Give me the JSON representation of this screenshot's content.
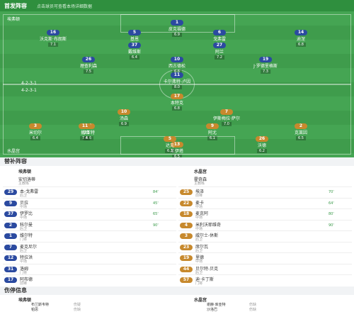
{
  "header": {
    "title": "首发阵容",
    "subtitle": "点击球员可查看本场详细数据"
  },
  "pitch": {
    "home": {
      "name": "埃弗顿",
      "formation": "4-2-3-1",
      "players": [
        {
          "number": "1",
          "name": "皮克福德",
          "rating": "6.9"
        },
        {
          "number": "16",
          "name": "沃克斯·布朗斯",
          "rating": "7.1"
        },
        {
          "number": "5",
          "name": "基恩",
          "rating": "6.7"
        },
        {
          "number": "6",
          "name": "戈弗雷",
          "rating": "7.0"
        },
        {
          "number": "14",
          "name": "迪涅",
          "rating": "6.8"
        },
        {
          "number": "37",
          "name": "戴维斯",
          "rating": "6.4"
        },
        {
          "number": "27",
          "name": "阿兰",
          "rating": "7.2"
        },
        {
          "number": "26",
          "name": "理查利森",
          "rating": "7.5"
        },
        {
          "number": "10",
          "name": "西古德松",
          "rating": "6.6"
        },
        {
          "number": "19",
          "name": "J·罗德里格斯",
          "rating": "7.3"
        },
        {
          "number": "11",
          "name": "卡尔弗特-卢因",
          "rating": "8.0"
        }
      ]
    },
    "away": {
      "name": "水晶宫",
      "formation": "4-2-3-1",
      "players": [
        {
          "number": "13",
          "name": "瓜伊塔",
          "rating": "6.5"
        },
        {
          "number": "3",
          "name": "米切尔",
          "rating": "6.4"
        },
        {
          "number": "16",
          "name": "库亚特",
          "rating": "6.6"
        },
        {
          "number": "5",
          "name": "达克",
          "rating": "6.3"
        },
        {
          "number": "26",
          "name": "沃德",
          "rating": "6.2"
        },
        {
          "number": "2",
          "name": "克莱因",
          "rating": "6.5"
        },
        {
          "number": "10",
          "name": "汤森",
          "rating": "6.9"
        },
        {
          "number": "7",
          "name": "伊斯梅拉·萨尔",
          "rating": "7.0"
        },
        {
          "number": "17",
          "name": "本特克",
          "rating": "6.8"
        },
        {
          "number": "11",
          "name": "扎哈",
          "rating": "7.4"
        },
        {
          "number": "9",
          "name": "阿尤",
          "rating": "6.1"
        }
      ]
    }
  },
  "substitutes": {
    "title": "替补阵容",
    "home": {
      "name": "埃弗顿",
      "coach": "安切洛蒂",
      "coach_role": "主教练",
      "players": [
        {
          "number": "29",
          "name": "本-戈弗雷",
          "position": "后卫",
          "minute": "84'"
        },
        {
          "number": "9",
          "name": "贝拉",
          "position": "中场",
          "minute": "45'"
        },
        {
          "number": "37",
          "name": "伊罗比",
          "position": "中场",
          "minute": "65'"
        },
        {
          "number": "2",
          "name": "科尔曼",
          "position": "后卫",
          "minute": "90'"
        },
        {
          "number": "1",
          "name": "维尔特",
          "position": "门将",
          "minute": ""
        },
        {
          "number": "7",
          "name": "麦克尼尔",
          "position": "后卫",
          "minute": ""
        },
        {
          "number": "12",
          "name": "特拉洪",
          "position": "中场",
          "minute": ""
        },
        {
          "number": "31",
          "name": "洛姆",
          "position": "门将",
          "minute": ""
        },
        {
          "number": "17",
          "name": "阿布德",
          "position": "前锋",
          "minute": ""
        }
      ]
    },
    "away": {
      "name": "水晶宫",
      "coach": "霍奇森",
      "coach_role": "主教练",
      "players": [
        {
          "number": "25",
          "name": "埃泽",
          "position": "前锋",
          "minute": "70'"
        },
        {
          "number": "22",
          "name": "麦卡",
          "position": "中场",
          "minute": "64'"
        },
        {
          "number": "18",
          "name": "麦克阿",
          "position": "中场",
          "minute": "80'"
        },
        {
          "number": "4",
          "name": "米利沃耶维奇",
          "position": "中场",
          "minute": "90'"
        },
        {
          "number": "3",
          "name": "威尔士-休斯",
          "position": "后卫",
          "minute": ""
        },
        {
          "number": "23",
          "name": "席尔瓦",
          "position": "后卫",
          "minute": ""
        },
        {
          "number": "19",
          "name": "里德",
          "position": "中场",
          "minute": ""
        },
        {
          "number": "44",
          "name": "贝尔特-贝克",
          "position": "后卫",
          "minute": ""
        },
        {
          "number": "57",
          "name": "迪·卡丁斯",
          "position": "门将",
          "minute": ""
        }
      ]
    }
  },
  "injuries": {
    "title": "伤停信息",
    "home": {
      "name": "埃弗顿",
      "players": [
        {
          "name": "布兰斯韦特",
          "status": "伤疑"
        },
        {
          "name": "帕思",
          "status": "伤缺"
        }
      ]
    },
    "away": {
      "name": "水晶宫",
      "players": [
        {
          "name": "谢赫·库亚特",
          "status": "伤缺"
        },
        {
          "name": "沙洛巴",
          "status": "伤缺"
        }
      ]
    }
  }
}
